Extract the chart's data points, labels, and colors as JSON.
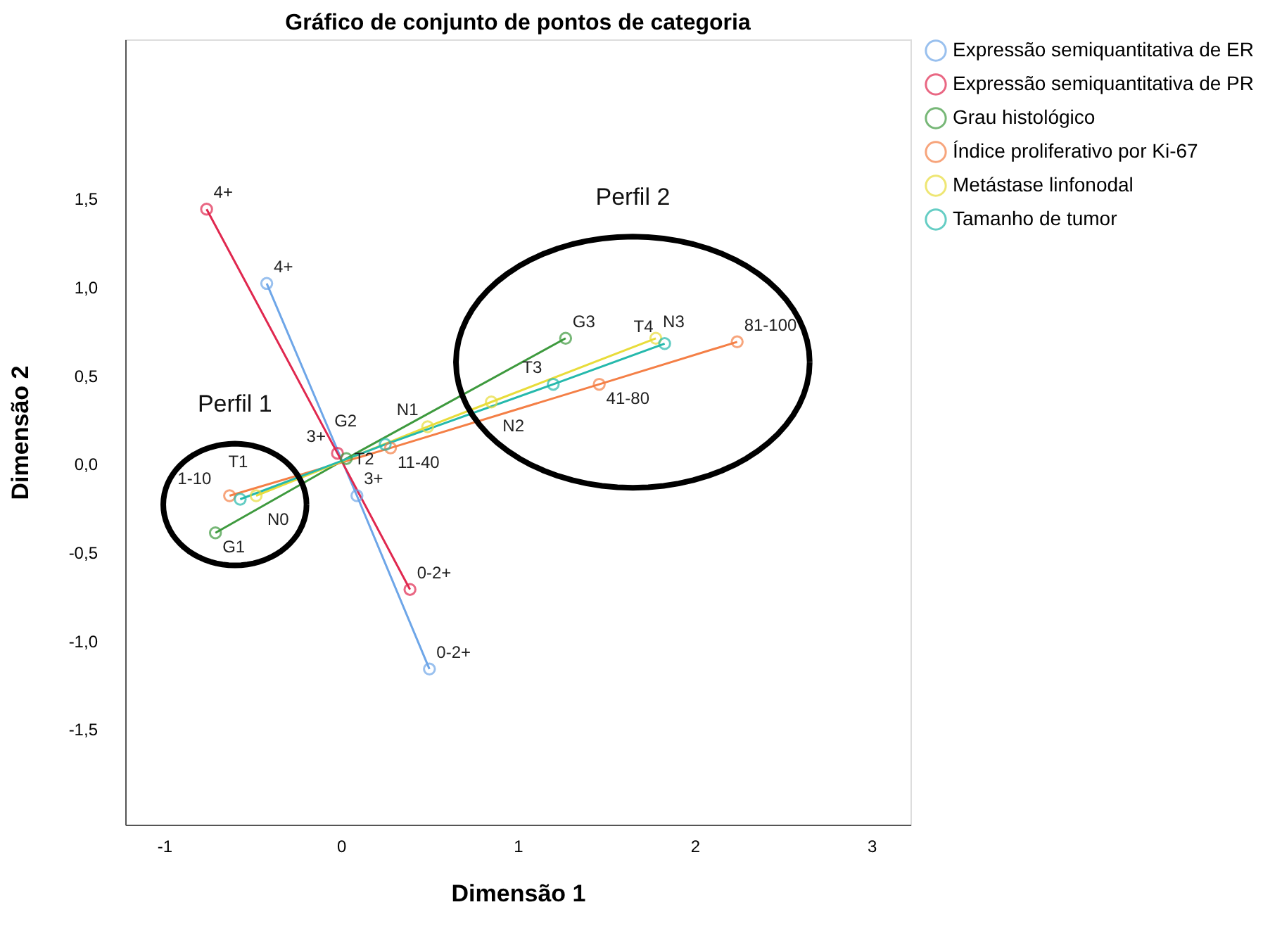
{
  "chart_data": {
    "type": "line",
    "title": "Gráfico de conjunto de pontos de categoria",
    "xlabel": "Dimensão 1",
    "ylabel": "Dimensão 2",
    "series": [
      {
        "name": "Expressão semiquantitativa de ER",
        "color": "#6ea6e8",
        "x": [
          -0.42,
          0.09,
          0.5
        ],
        "values": [
          1.02,
          -0.18,
          -1.16
        ]
      },
      {
        "name": "Expressão semiquantitativa de PR",
        "color": "#e0284f",
        "x": [
          -0.76,
          -0.02,
          0.39
        ],
        "values": [
          1.44,
          0.06,
          -0.71
        ]
      },
      {
        "name": "Grau histológico",
        "color": "#3e9a3e",
        "x": [
          -0.71,
          0.03,
          1.27
        ],
        "values": [
          -0.39,
          0.03,
          0.71
        ]
      },
      {
        "name": "Índice proliferativo por Ki-67",
        "color": "#f47f46",
        "x": [
          -0.63,
          0.28,
          1.46,
          2.24
        ],
        "values": [
          -0.18,
          0.09,
          0.45,
          0.69
        ]
      },
      {
        "name": "Metástase linfonodal",
        "color": "#e8dc3a",
        "x": [
          -0.48,
          0.49,
          0.85,
          1.78
        ],
        "values": [
          -0.18,
          0.21,
          0.35,
          0.71
        ]
      },
      {
        "name": "Tamanho de tumor",
        "color": "#25b9ac",
        "x": [
          -0.57,
          0.25,
          1.2,
          1.83
        ],
        "values": [
          -0.2,
          0.11,
          0.45,
          0.68
        ]
      }
    ],
    "annotations": [
      {
        "text": "4+",
        "x": -0.42,
        "y": 1.02
      },
      {
        "text": "3+",
        "x": 0.09,
        "y": -0.18
      },
      {
        "text": "0-2+",
        "x": 0.5,
        "y": -1.16
      },
      {
        "text": "4+",
        "x": -0.76,
        "y": 1.44
      },
      {
        "text": "3+",
        "x": -0.02,
        "y": 0.06
      },
      {
        "text": "0-2+",
        "x": 0.39,
        "y": -0.71
      },
      {
        "text": "G1",
        "x": -0.71,
        "y": -0.39
      },
      {
        "text": "G2",
        "x": 0.03,
        "y": 0.03
      },
      {
        "text": "G3",
        "x": 1.27,
        "y": 0.71
      },
      {
        "text": "1-10",
        "x": -0.63,
        "y": -0.18
      },
      {
        "text": "11-40",
        "x": 0.28,
        "y": 0.09
      },
      {
        "text": "41-80",
        "x": 1.46,
        "y": 0.45
      },
      {
        "text": "81-100",
        "x": 2.24,
        "y": 0.69
      },
      {
        "text": "N0",
        "x": -0.48,
        "y": -0.18
      },
      {
        "text": "N1",
        "x": 0.49,
        "y": 0.21
      },
      {
        "text": "N2",
        "x": 0.85,
        "y": 0.35
      },
      {
        "text": "N3",
        "x": 1.78,
        "y": 0.71
      },
      {
        "text": "T1",
        "x": -0.57,
        "y": -0.2
      },
      {
        "text": "T2",
        "x": 0.25,
        "y": 0.11
      },
      {
        "text": "T3",
        "x": 1.2,
        "y": 0.45
      },
      {
        "text": "T4",
        "x": 1.83,
        "y": 0.68
      },
      "Perfil 1",
      "Perfil 2"
    ],
    "xlim": [
      -1.22,
      3.22
    ],
    "ylim": [
      -2.04,
      2.4
    ],
    "xticks": [
      -1,
      0,
      1,
      2,
      3
    ],
    "yticks": [
      {
        "value": -1.5,
        "label": "-1,5"
      },
      {
        "value": -1.0,
        "label": "-1,0"
      },
      {
        "value": -0.5,
        "label": "-0,5"
      },
      {
        "value": 0,
        "label": "0,0"
      },
      {
        "value": 0.5,
        "label": "0,5"
      },
      {
        "value": 1.0,
        "label": "1,0"
      },
      {
        "value": 1.5,
        "label": "1,5"
      }
    ],
    "marker": "circle",
    "grid": false,
    "legend": "right"
  }
}
